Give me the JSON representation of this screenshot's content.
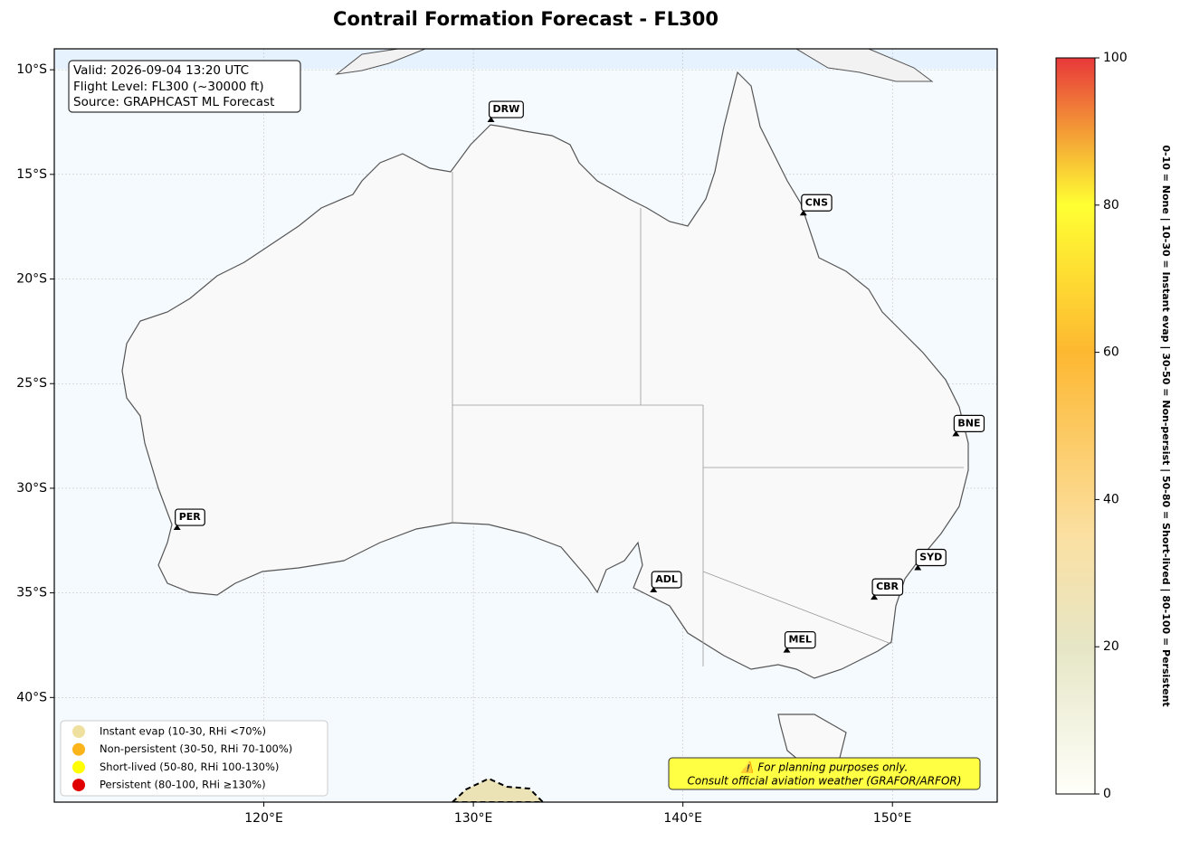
{
  "chart_data": {
    "type": "map",
    "title": "Contrail Formation Forecast - FL300",
    "info_lines": [
      "Valid: 2026-09-04 13:20 UTC",
      "Flight Level: FL300 (~30000 ft)",
      "Source: GRAPHCAST ML Forecast"
    ],
    "xlim": [
      110,
      155
    ],
    "ylim": [
      -45,
      -9
    ],
    "xticks": [
      {
        "value": 120,
        "label": "120°E"
      },
      {
        "value": 130,
        "label": "130°E"
      },
      {
        "value": 140,
        "label": "140°E"
      },
      {
        "value": 150,
        "label": "150°E"
      }
    ],
    "yticks": [
      {
        "value": -10,
        "label": "10°S"
      },
      {
        "value": -15,
        "label": "15°S"
      },
      {
        "value": -20,
        "label": "20°S"
      },
      {
        "value": -25,
        "label": "25°S"
      },
      {
        "value": -30,
        "label": "30°S"
      },
      {
        "value": -35,
        "label": "35°S"
      },
      {
        "value": -40,
        "label": "40°S"
      }
    ],
    "grid": true,
    "cities": [
      {
        "name": "DRW",
        "lon": 130.84,
        "lat": -12.46
      },
      {
        "name": "CNS",
        "lon": 145.75,
        "lat": -16.92
      },
      {
        "name": "BNE",
        "lon": 153.03,
        "lat": -27.47
      },
      {
        "name": "PER",
        "lon": 115.86,
        "lat": -31.95
      },
      {
        "name": "ADL",
        "lon": 138.6,
        "lat": -34.93
      },
      {
        "name": "SYD",
        "lon": 151.21,
        "lat": -33.87
      },
      {
        "name": "CBR",
        "lon": 149.13,
        "lat": -35.28
      },
      {
        "name": "MEL",
        "lon": 144.96,
        "lat": -37.81
      }
    ],
    "legend": [
      {
        "name": "Instant evap (10-30, RHi <70%)",
        "color": "#f0e0a0"
      },
      {
        "name": "Non-persistent (30-50, RHi 70-100%)",
        "color": "#fbb41a"
      },
      {
        "name": "Short-lived (50-80, RHi 100-130%)",
        "color": "#ffff00"
      },
      {
        "name": "Persistent (80-100, RHi ≥130%)",
        "color": "#e00000"
      }
    ],
    "disclaimer": [
      "⚠️ For planning purposes only.",
      "Consult official aviation weather (GRAFOR/ARFOR)"
    ],
    "colorbar": {
      "label": "0-10 = None  |  10-30 = Instant evap  |  30-50 = Non-persist  |  50-80 = Short-lived  |  80-100 = Persistent",
      "lim": [
        0,
        100
      ],
      "ticks": [
        0,
        20,
        40,
        60,
        80,
        100
      ],
      "stops": [
        {
          "value": 0,
          "color": "#fffffa"
        },
        {
          "value": 20,
          "color": "#e6e6c6"
        },
        {
          "value": 35,
          "color": "#fbe0a2"
        },
        {
          "value": 60,
          "color": "#fdb831"
        },
        {
          "value": 80,
          "color": "#ffff33"
        },
        {
          "value": 100,
          "color": "#e8383a"
        }
      ]
    }
  }
}
